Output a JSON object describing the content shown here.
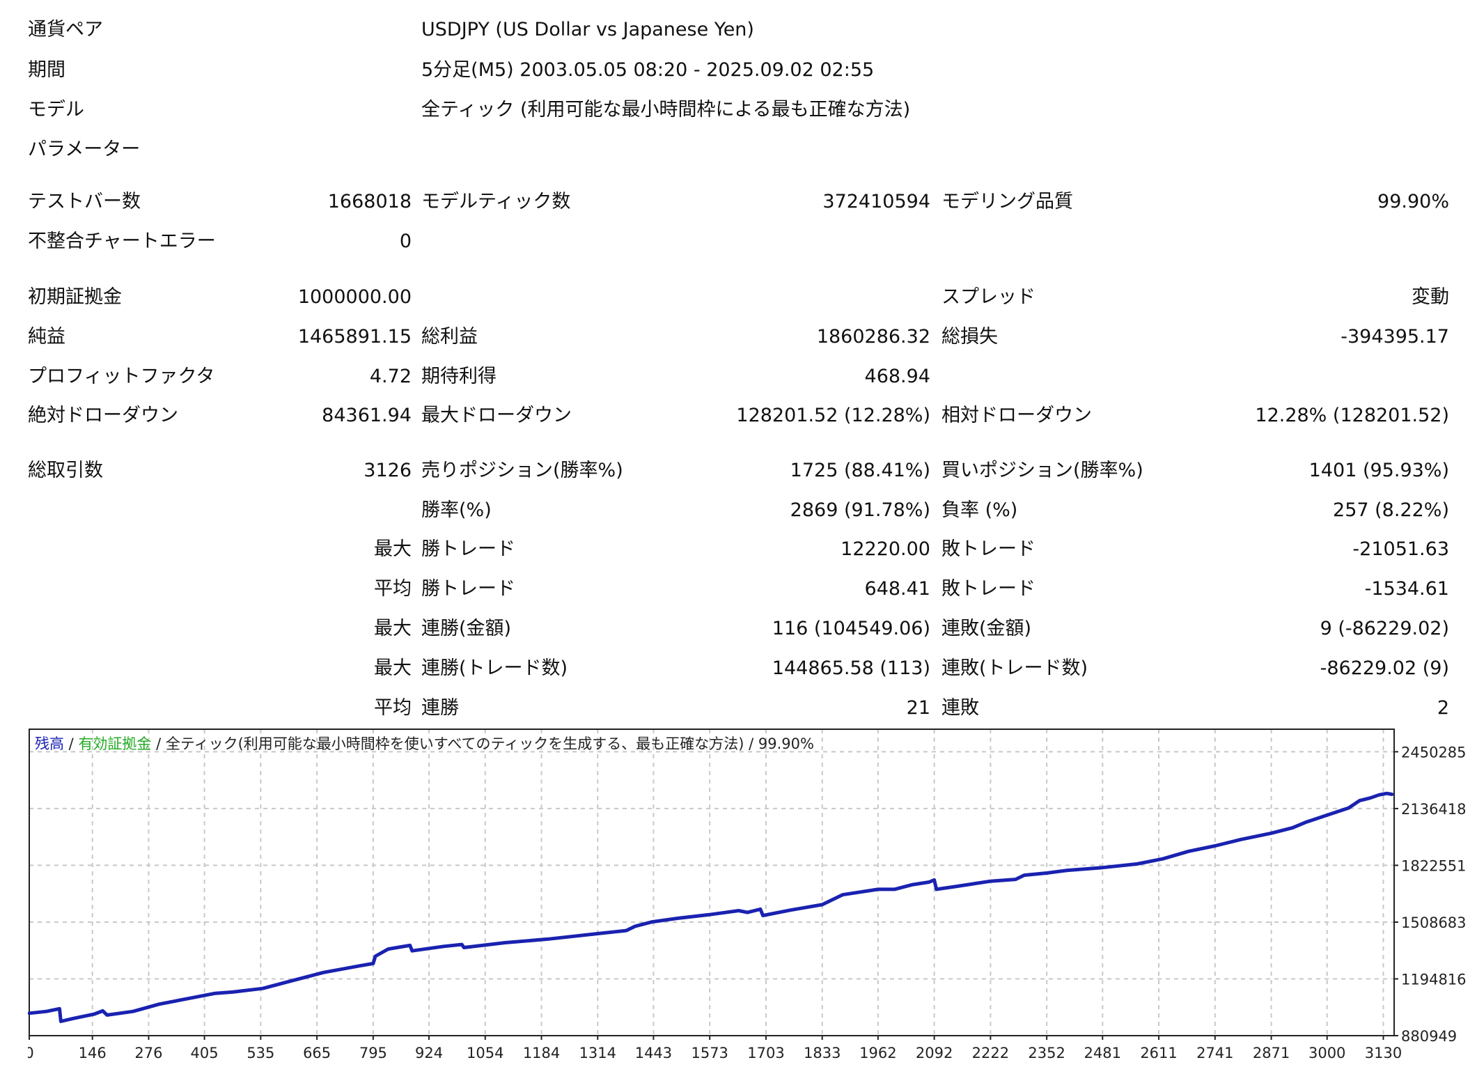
{
  "header": [
    {
      "label": "通貨ペア",
      "value": "USDJPY (US Dollar vs Japanese Yen)"
    },
    {
      "label": "期間",
      "value": "5分足(M5) 2003.05.05 08:20 - 2025.09.02 02:55"
    },
    {
      "label": "モデル",
      "value": "全ティック (利用可能な最小時間枠による最も正確な方法)"
    },
    {
      "label": "パラメーター",
      "value": ""
    }
  ],
  "rows": [
    [
      "テストバー数",
      "1668018",
      "モデルティック数",
      "372410594",
      "モデリング品質",
      "99.90%"
    ],
    [
      "不整合チャートエラー",
      "0",
      "",
      "",
      "",
      ""
    ],
    [
      "初期証拠金",
      "1000000.00",
      "",
      "",
      "スプレッド",
      "変動"
    ],
    [
      "純益",
      "1465891.15",
      "総利益",
      "1860286.32",
      "総損失",
      "-394395.17"
    ],
    [
      "プロフィットファクタ",
      "4.72",
      "期待利得",
      "468.94",
      "",
      ""
    ],
    [
      "絶対ドローダウン",
      "84361.94",
      "最大ドローダウン",
      "128201.52 (12.28%)",
      "相対ドローダウン",
      "12.28% (128201.52)"
    ],
    [
      "総取引数",
      "3126",
      "売りポジション(勝率%)",
      "1725 (88.41%)",
      "買いポジション(勝率%)",
      "1401 (95.93%)"
    ],
    [
      "",
      "",
      "勝率(%)",
      "2869 (91.78%)",
      "負率 (%)",
      "257 (8.22%)"
    ],
    [
      "",
      "最大",
      "勝トレード",
      "12220.00",
      "敗トレード",
      "-21051.63"
    ],
    [
      "",
      "平均",
      "勝トレード",
      "648.41",
      "敗トレード",
      "-1534.61"
    ],
    [
      "",
      "最大",
      "連勝(金額)",
      "116 (104549.06)",
      "連敗(金額)",
      "9 (-86229.02)"
    ],
    [
      "",
      "最大",
      "連勝(トレード数)",
      "144865.58 (113)",
      "連敗(トレード数)",
      "-86229.02 (9)"
    ],
    [
      "",
      "平均",
      "連勝",
      "21",
      "連敗",
      "2"
    ]
  ],
  "chart_data": {
    "type": "line",
    "legend": [
      {
        "text": "残高",
        "color": "#1a22b0"
      },
      {
        "text": " / ",
        "color": "#222222"
      },
      {
        "text": "有効証拠金",
        "color": "#22aa22"
      },
      {
        "text": " / 全ティック(利用可能な最小時間枠を使いすべてのティックを生成する、最も正確な方法) / 99.90%",
        "color": "#222222"
      }
    ],
    "x_ticks": [
      0,
      146,
      276,
      405,
      535,
      665,
      795,
      924,
      1054,
      1184,
      1314,
      1443,
      1573,
      1703,
      1833,
      1962,
      2092,
      2222,
      2352,
      2481,
      2611,
      2741,
      2871,
      3000,
      3130
    ],
    "y_ticks": [
      880949,
      1194816,
      1508683,
      1822551,
      2136418,
      2450285
    ],
    "xlim": [
      0,
      3155
    ],
    "ylim": [
      880949,
      2575000
    ],
    "series": [
      {
        "name": "残高",
        "color": "#1a22b0",
        "points": [
          [
            0,
            1005000
          ],
          [
            40,
            1015000
          ],
          [
            70,
            1030000
          ],
          [
            73,
            960000
          ],
          [
            100,
            975000
          ],
          [
            150,
            1000000
          ],
          [
            170,
            1018000
          ],
          [
            180,
            995000
          ],
          [
            240,
            1015000
          ],
          [
            300,
            1055000
          ],
          [
            380,
            1092000
          ],
          [
            430,
            1115000
          ],
          [
            470,
            1122000
          ],
          [
            540,
            1142000
          ],
          [
            600,
            1180000
          ],
          [
            680,
            1230000
          ],
          [
            760,
            1265000
          ],
          [
            795,
            1280000
          ],
          [
            800,
            1320000
          ],
          [
            830,
            1360000
          ],
          [
            880,
            1380000
          ],
          [
            885,
            1350000
          ],
          [
            960,
            1375000
          ],
          [
            1000,
            1385000
          ],
          [
            1005,
            1368000
          ],
          [
            1100,
            1395000
          ],
          [
            1200,
            1415000
          ],
          [
            1314,
            1445000
          ],
          [
            1380,
            1462000
          ],
          [
            1400,
            1485000
          ],
          [
            1440,
            1510000
          ],
          [
            1500,
            1530000
          ],
          [
            1573,
            1550000
          ],
          [
            1640,
            1572000
          ],
          [
            1660,
            1562000
          ],
          [
            1690,
            1580000
          ],
          [
            1696,
            1545000
          ],
          [
            1760,
            1575000
          ],
          [
            1833,
            1605000
          ],
          [
            1880,
            1660000
          ],
          [
            1962,
            1690000
          ],
          [
            2000,
            1690000
          ],
          [
            2040,
            1715000
          ],
          [
            2080,
            1730000
          ],
          [
            2092,
            1742000
          ],
          [
            2097,
            1690000
          ],
          [
            2140,
            1705000
          ],
          [
            2222,
            1735000
          ],
          [
            2280,
            1745000
          ],
          [
            2300,
            1768000
          ],
          [
            2352,
            1780000
          ],
          [
            2400,
            1795000
          ],
          [
            2481,
            1810000
          ],
          [
            2560,
            1830000
          ],
          [
            2620,
            1858000
          ],
          [
            2680,
            1900000
          ],
          [
            2741,
            1930000
          ],
          [
            2800,
            1965000
          ],
          [
            2871,
            2000000
          ],
          [
            2920,
            2030000
          ],
          [
            2950,
            2060000
          ],
          [
            3000,
            2100000
          ],
          [
            3050,
            2140000
          ],
          [
            3075,
            2180000
          ],
          [
            3100,
            2195000
          ],
          [
            3120,
            2212000
          ],
          [
            3138,
            2220000
          ],
          [
            3150,
            2215000
          ]
        ]
      }
    ]
  }
}
